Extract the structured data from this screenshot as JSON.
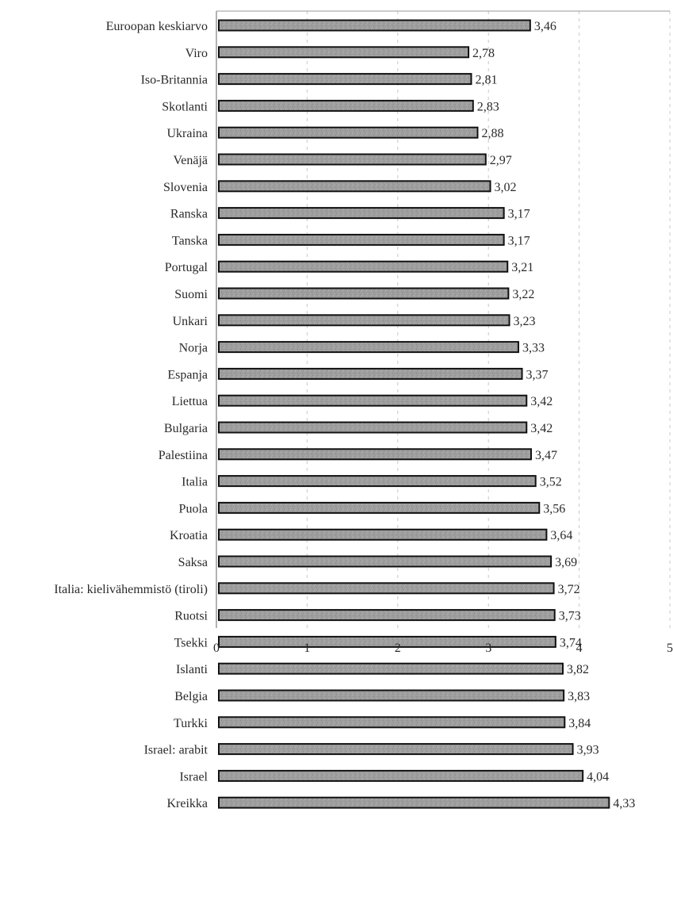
{
  "chart_data": {
    "type": "bar",
    "orientation": "horizontal",
    "categories": [
      "Euroopan keskiarvo",
      "Viro",
      "Iso-Britannia",
      "Skotlanti",
      "Ukraina",
      "Venäjä",
      "Slovenia",
      "Ranska",
      "Tanska",
      "Portugal",
      "Suomi",
      "Unkari",
      "Norja",
      "Espanja",
      "Liettua",
      "Bulgaria",
      "Palestiina",
      "Italia",
      "Puola",
      "Kroatia",
      "Saksa",
      "Italia: kielivähemmistö (tiroli)",
      "Ruotsi",
      "Tsekki",
      "Islanti",
      "Belgia",
      "Turkki",
      "Israel: arabit",
      "Israel",
      "Kreikka"
    ],
    "values": [
      3.46,
      2.78,
      2.81,
      2.83,
      2.88,
      2.97,
      3.02,
      3.17,
      3.17,
      3.21,
      3.22,
      3.23,
      3.33,
      3.37,
      3.42,
      3.42,
      3.47,
      3.52,
      3.56,
      3.64,
      3.69,
      3.72,
      3.73,
      3.74,
      3.82,
      3.83,
      3.84,
      3.93,
      4.04,
      4.33
    ],
    "value_labels": [
      "3,46",
      "2,78",
      "2,81",
      "2,83",
      "2,88",
      "2,97",
      "3,02",
      "3,17",
      "3,17",
      "3,21",
      "3,22",
      "3,23",
      "3,33",
      "3,37",
      "3,42",
      "3,42",
      "3,47",
      "3,52",
      "3,56",
      "3,64",
      "3,69",
      "3,72",
      "3,73",
      "3,74",
      "3,82",
      "3,83",
      "3,84",
      "3,93",
      "4,04",
      "4,33"
    ],
    "xlim": [
      0,
      5
    ],
    "x_ticks": [
      0,
      1,
      2,
      3,
      4,
      5
    ],
    "x_tick_labels": [
      "0",
      "1",
      "2",
      "3",
      "4",
      "5"
    ],
    "grid": "vertical dashed",
    "legend": "none",
    "title": "",
    "xlabel": "",
    "ylabel": "",
    "bar_color": "#9c9c9c",
    "bar_edge_color": "#111111",
    "grid_color": "#c8c8c8"
  }
}
